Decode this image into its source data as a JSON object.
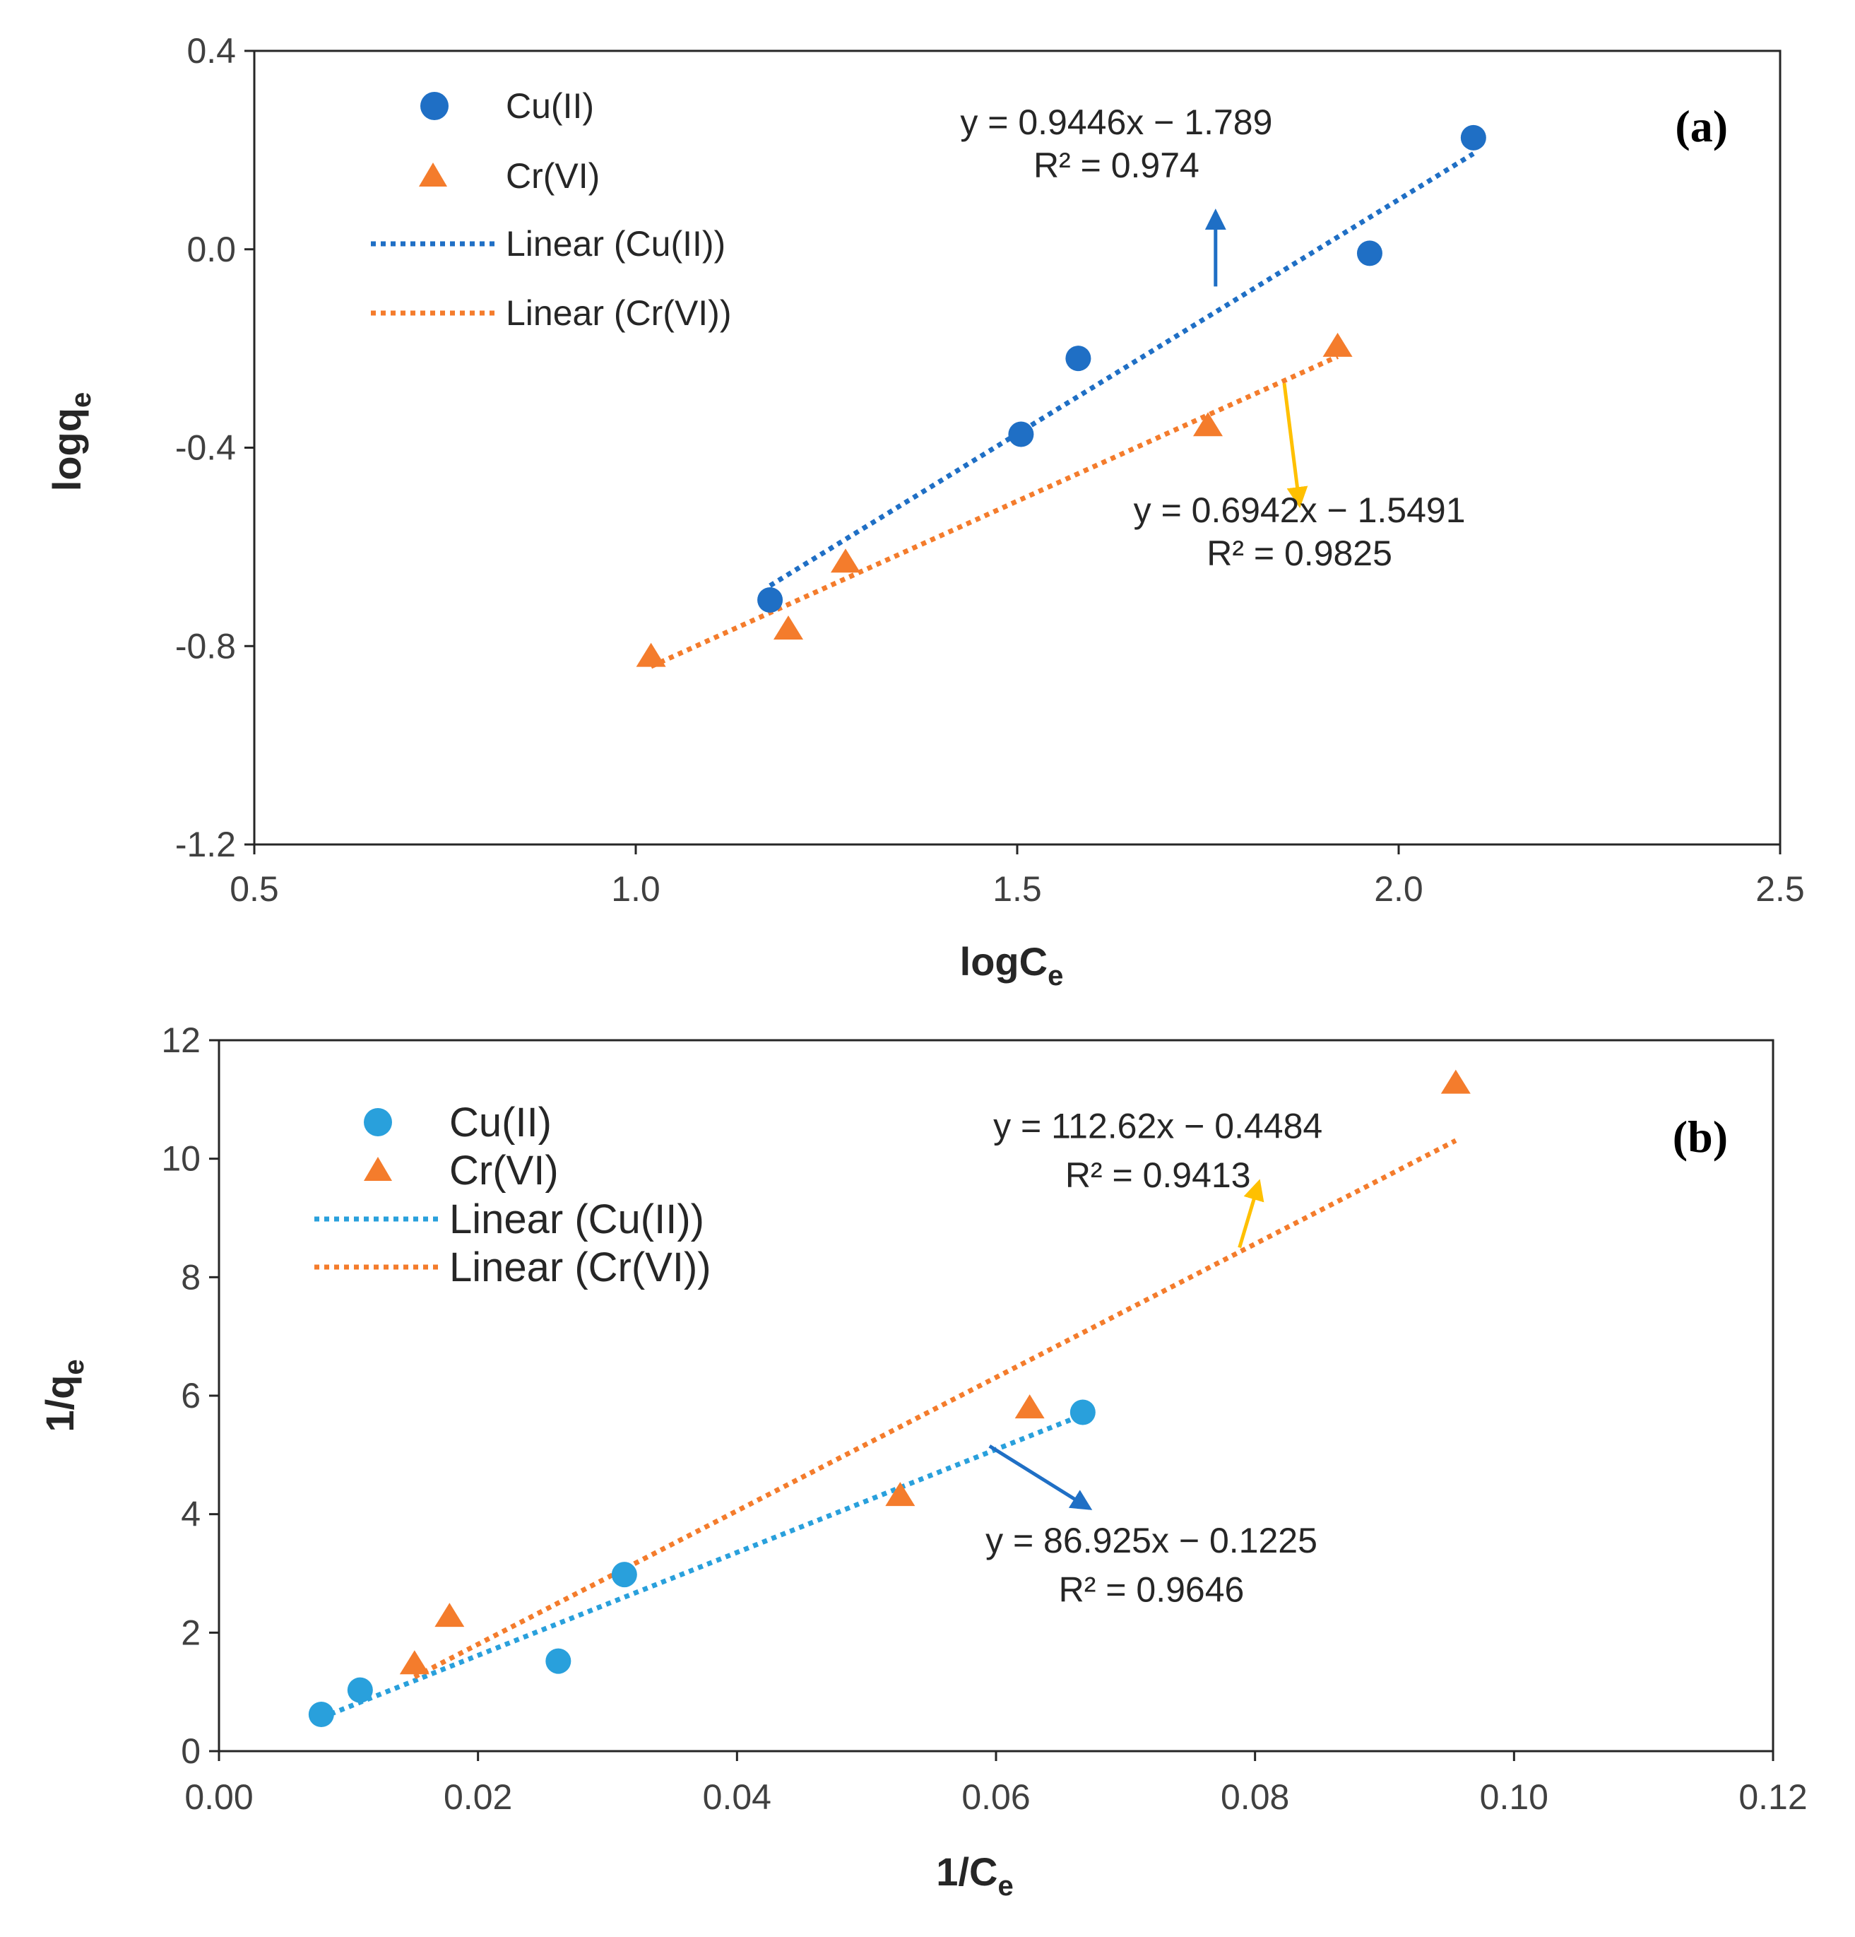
{
  "colors": {
    "cu_a": "#1f6fc5",
    "cr": "#f47c2c",
    "cu_b": "#29a0dc",
    "arrow_gold": "#ffc000",
    "arrow_blue": "#1f6fc5"
  },
  "chart_data": [
    {
      "id": "a",
      "type": "scatter",
      "panel_label": "(a)",
      "xlabel_main": "logC",
      "xlabel_sub": "e",
      "ylabel_main": "logq",
      "ylabel_sub": "e",
      "xlim": [
        0.5,
        2.5
      ],
      "ylim": [
        -1.2,
        0.4
      ],
      "xticks": [
        0.5,
        1.0,
        1.5,
        2.0,
        2.5
      ],
      "yticks": [
        -1.2,
        -0.8,
        -0.4,
        0.0,
        0.4
      ],
      "xtick_labels": [
        "0.5",
        "1.0",
        "1.5",
        "2.0",
        "2.5"
      ],
      "ytick_labels": [
        "-1.2",
        "-0.8",
        "-0.4",
        "0.0",
        "0.4"
      ],
      "legend": [
        "Cu(II)",
        "Cr(VI)",
        "Linear (Cu(II))",
        "Linear (Cr(VI))"
      ],
      "series": [
        {
          "name": "Cu(II)",
          "marker": "circle",
          "color_key": "cu_a",
          "x": [
            1.176,
            1.505,
            1.58,
            1.962,
            2.098
          ],
          "y": [
            -0.707,
            -0.373,
            -0.22,
            -0.008,
            0.225
          ],
          "fit": {
            "slope": 0.9446,
            "intercept": -1.789,
            "x_range": [
              1.176,
              2.098
            ]
          }
        },
        {
          "name": "Cr(VI)",
          "marker": "triangle",
          "color_key": "cr",
          "x": [
            1.02,
            1.2,
            1.275,
            1.75,
            1.92
          ],
          "y": [
            -0.82,
            -0.765,
            -0.63,
            -0.355,
            -0.195
          ],
          "fit": {
            "slope": 0.6942,
            "intercept": -1.5491,
            "x_range": [
              1.02,
              1.92
            ]
          }
        }
      ],
      "annotations": [
        {
          "lines": [
            "y = 0.9446x − 1.789",
            "R² = 0.974"
          ],
          "text_x": 1.63,
          "text_y": 0.232,
          "line_gap": 0.087,
          "arrow": {
            "from": [
              1.76,
              -0.075
            ],
            "to": [
              1.76,
              0.075
            ],
            "color_key": "arrow_blue"
          }
        },
        {
          "lines": [
            "y = 0.6942x − 1.5491",
            "R² = 0.9825"
          ],
          "text_x": 1.87,
          "text_y": -0.55,
          "line_gap": 0.087,
          "arrow": {
            "from": [
              1.85,
              -0.27
            ],
            "to": [
              1.87,
              -0.515
            ],
            "color_key": "arrow_gold"
          }
        }
      ]
    },
    {
      "id": "b",
      "type": "scatter",
      "panel_label": "(b)",
      "xlabel_main": "1/C",
      "xlabel_sub": "e",
      "ylabel_main": "1/q",
      "ylabel_sub": "e",
      "xlim": [
        0,
        0.12
      ],
      "ylim": [
        0,
        12
      ],
      "xticks": [
        0,
        0.02,
        0.04,
        0.06,
        0.08,
        0.1,
        0.12
      ],
      "yticks": [
        0,
        2,
        4,
        6,
        8,
        10,
        12
      ],
      "xtick_labels": [
        "0.00",
        "0.02",
        "0.04",
        "0.06",
        "0.08",
        "0.10",
        "0.12"
      ],
      "ytick_labels": [
        "0",
        "2",
        "4",
        "6",
        "8",
        "10",
        "12"
      ],
      "legend": [
        "Cu(II)",
        "Cr(VI)",
        "Linear (Cu(II))",
        "Linear (Cr(VI))"
      ],
      "series": [
        {
          "name": "Cu(II)",
          "marker": "circle",
          "color_key": "cu_b",
          "x": [
            0.0079,
            0.0109,
            0.0262,
            0.0313,
            0.0667
          ],
          "y": [
            0.62,
            1.03,
            1.52,
            2.98,
            5.72
          ],
          "fit": {
            "slope": 86.925,
            "intercept": -0.1225,
            "x_range": [
              0.0079,
              0.0667
            ]
          }
        },
        {
          "name": "Cr(VI)",
          "marker": "triangle",
          "color_key": "cr",
          "x": [
            0.0151,
            0.0178,
            0.0526,
            0.0626,
            0.0955
          ],
          "y": [
            1.48,
            2.28,
            4.32,
            5.8,
            11.28
          ],
          "fit": {
            "slope": 112.62,
            "intercept": -0.4484,
            "x_range": [
              0.0151,
              0.0955
            ]
          }
        }
      ],
      "annotations": [
        {
          "lines": [
            "y = 112.62x − 0.4484",
            "R² = 0.9413"
          ],
          "text_x": 0.0725,
          "text_y": 10.35,
          "line_gap": 0.83,
          "arrow": {
            "from": [
              0.0788,
              8.5
            ],
            "to": [
              0.0803,
              9.6
            ],
            "color_key": "arrow_gold"
          }
        },
        {
          "lines": [
            "y = 86.925x − 0.1225",
            "R² = 0.9646"
          ],
          "text_x": 0.072,
          "text_y": 3.35,
          "line_gap": 0.83,
          "arrow": {
            "from": [
              0.0595,
              5.15
            ],
            "to": [
              0.0672,
              4.1
            ],
            "color_key": "arrow_blue"
          }
        }
      ]
    }
  ]
}
